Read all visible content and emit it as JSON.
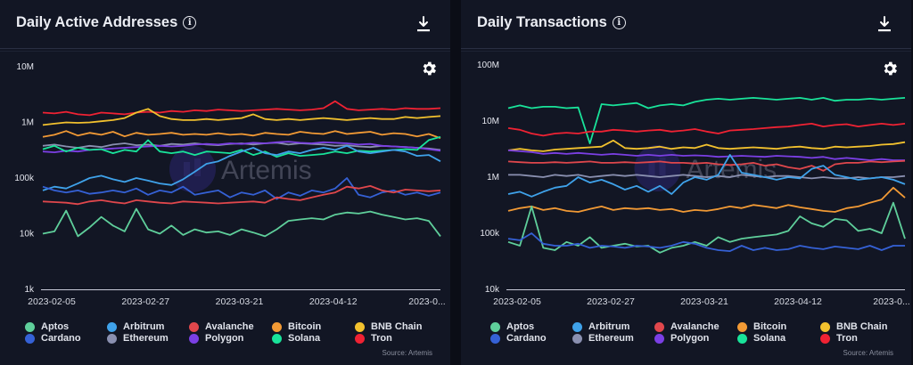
{
  "palette": {
    "Aptos": "#5fcf9b",
    "Arbitrum": "#3fa2ea",
    "Avalanche": "#e0474c",
    "Bitcoin": "#f29a35",
    "BNB Chain": "#f2c12e",
    "Cardano": "#3561d6",
    "Ethereum": "#8a90b0",
    "Polygon": "#7b3fe4",
    "Solana": "#19e39a",
    "Tron": "#ef2233"
  },
  "watermark": "Artemis",
  "panels": [
    {
      "title": "Daily Active Addresses",
      "source": "Source: Artemis",
      "legend": [
        "Aptos",
        "Arbitrum",
        "Avalanche",
        "Bitcoin",
        "BNB Chain",
        "Cardano",
        "Ethereum",
        "Polygon",
        "Solana",
        "Tron"
      ]
    },
    {
      "title": "Daily Transactions",
      "source": "Source: Artemis",
      "legend": [
        "Aptos",
        "Arbitrum",
        "Avalanche",
        "Bitcoin",
        "BNB Chain",
        "Cardano",
        "Ethereum",
        "Polygon",
        "Solana",
        "Tron"
      ]
    }
  ],
  "chart_data": [
    {
      "type": "line",
      "title": "Daily Active Addresses",
      "yscale": "log",
      "ylim": [
        1000,
        10000000
      ],
      "yticks": [
        1000,
        10000,
        100000,
        1000000,
        10000000
      ],
      "ytick_labels": [
        "1k",
        "10k",
        "100k",
        "1M",
        "10M"
      ],
      "xlim": [
        "2023-02-05",
        "2023-05-04"
      ],
      "xtick_labels": [
        "2023-02-05",
        "2023-02-27",
        "2023-03-21",
        "2023-04-12",
        "2023-0..."
      ],
      "series": [
        {
          "name": "Tron",
          "values": [
            1500000,
            1450000,
            1550000,
            1400000,
            1350000,
            1500000,
            1450000,
            1400000,
            1500000,
            1550000,
            1500000,
            1600000,
            1550000,
            1650000,
            1600000,
            1700000,
            1650000,
            1600000,
            1650000,
            1700000,
            1750000,
            1700000,
            1650000,
            1700000,
            1800000,
            2400000,
            1750000,
            1650000,
            1700000,
            1750000,
            1700000,
            1800000,
            1750000,
            1750000,
            1800000
          ]
        },
        {
          "name": "BNB Chain",
          "values": [
            900000,
            950000,
            1000000,
            980000,
            1000000,
            1050000,
            1100000,
            1200000,
            1500000,
            1750000,
            1300000,
            1150000,
            1100000,
            1100000,
            1150000,
            1100000,
            1150000,
            1200000,
            1400000,
            1150000,
            1100000,
            1150000,
            1100000,
            1150000,
            1200000,
            1150000,
            1100000,
            1150000,
            1200000,
            1150000,
            1150000,
            1250000,
            1200000,
            1250000,
            1300000
          ]
        },
        {
          "name": "Bitcoin",
          "values": [
            550000,
            600000,
            700000,
            580000,
            650000,
            600000,
            680000,
            560000,
            650000,
            600000,
            620000,
            650000,
            600000,
            620000,
            600000,
            640000,
            600000,
            620000,
            580000,
            650000,
            620000,
            600000,
            680000,
            640000,
            620000,
            700000,
            620000,
            650000,
            680000,
            600000,
            640000,
            620000,
            560000,
            620000,
            520000
          ]
        },
        {
          "name": "Ethereum",
          "values": [
            380000,
            400000,
            370000,
            350000,
            380000,
            360000,
            400000,
            420000,
            390000,
            400000,
            380000,
            410000,
            400000,
            420000,
            400000,
            390000,
            410000,
            420000,
            400000,
            420000,
            430000,
            400000,
            420000,
            410000,
            400000,
            380000,
            390000,
            370000,
            360000,
            380000,
            370000,
            360000,
            350000,
            340000,
            320000
          ]
        },
        {
          "name": "Polygon",
          "values": [
            300000,
            290000,
            310000,
            300000,
            320000,
            330000,
            340000,
            350000,
            360000,
            370000,
            380000,
            370000,
            380000,
            400000,
            410000,
            400000,
            420000,
            410000,
            430000,
            420000,
            440000,
            450000,
            430000,
            420000,
            440000,
            430000,
            420000,
            400000,
            410000,
            380000,
            370000,
            360000,
            350000,
            330000,
            310000
          ]
        },
        {
          "name": "Solana",
          "values": [
            330000,
            380000,
            300000,
            350000,
            320000,
            330000,
            280000,
            320000,
            300000,
            480000,
            300000,
            280000,
            300000,
            260000,
            300000,
            290000,
            280000,
            320000,
            260000,
            300000,
            240000,
            280000,
            250000,
            260000,
            270000,
            300000,
            280000,
            310000,
            300000,
            310000,
            320000,
            330000,
            320000,
            480000,
            550000
          ]
        },
        {
          "name": "Arbitrum",
          "values": [
            60000,
            70000,
            65000,
            80000,
            100000,
            110000,
            95000,
            85000,
            100000,
            90000,
            80000,
            75000,
            95000,
            130000,
            180000,
            200000,
            250000,
            300000,
            350000,
            280000,
            260000,
            300000,
            280000,
            320000,
            350000,
            320000,
            380000,
            300000,
            280000,
            300000,
            320000,
            300000,
            250000,
            260000,
            200000
          ]
        },
        {
          "name": "Cardano",
          "values": [
            70000,
            60000,
            55000,
            60000,
            52000,
            55000,
            60000,
            55000,
            65000,
            50000,
            60000,
            55000,
            70000,
            50000,
            55000,
            60000,
            45000,
            55000,
            50000,
            60000,
            42000,
            55000,
            48000,
            60000,
            55000,
            65000,
            100000,
            50000,
            45000,
            55000,
            60000,
            50000,
            55000,
            48000,
            55000
          ]
        },
        {
          "name": "Avalanche",
          "values": [
            38000,
            37000,
            36000,
            34000,
            38000,
            40000,
            37000,
            35000,
            40000,
            38000,
            36000,
            35000,
            38000,
            37000,
            36000,
            35000,
            36000,
            37000,
            38000,
            36000,
            45000,
            42000,
            40000,
            45000,
            50000,
            55000,
            70000,
            65000,
            72000,
            60000,
            55000,
            62000,
            60000,
            58000,
            60000
          ]
        },
        {
          "name": "Aptos",
          "values": [
            10000,
            11000,
            26000,
            9000,
            13000,
            20000,
            14000,
            11000,
            28000,
            12000,
            10000,
            14000,
            9500,
            12000,
            10500,
            11000,
            9500,
            12000,
            10500,
            9000,
            12000,
            17000,
            18000,
            19000,
            18000,
            22000,
            24000,
            23000,
            25000,
            22000,
            20000,
            18000,
            19000,
            17000,
            9000
          ]
        }
      ]
    },
    {
      "type": "line",
      "title": "Daily Transactions",
      "yscale": "log",
      "ylim": [
        10000,
        100000000
      ],
      "yticks": [
        10000,
        100000,
        1000000,
        10000000,
        100000000
      ],
      "ytick_labels": [
        "10k",
        "100k",
        "1M",
        "10M",
        "100M"
      ],
      "xlim": [
        "2023-02-05",
        "2023-05-04"
      ],
      "xtick_labels": [
        "2023-02-05",
        "2023-02-27",
        "2023-03-21",
        "2023-04-12",
        "2023-0..."
      ],
      "series": [
        {
          "name": "Solana",
          "values": [
            17000000,
            19000000,
            17000000,
            18000000,
            18000000,
            17000000,
            17500000,
            4000000,
            20000000,
            19000000,
            20000000,
            21000000,
            17000000,
            19000000,
            20000000,
            19000000,
            22000000,
            24000000,
            25000000,
            24000000,
            25000000,
            26000000,
            25000000,
            24000000,
            25000000,
            26000000,
            24000000,
            26000000,
            23000000,
            24000000,
            24000000,
            25000000,
            24000000,
            25000000,
            26000000
          ]
        },
        {
          "name": "Tron",
          "values": [
            7500000,
            7000000,
            6000000,
            5500000,
            6000000,
            6200000,
            6000000,
            6500000,
            6500000,
            7000000,
            6800000,
            6500000,
            6800000,
            7000000,
            6500000,
            6800000,
            7200000,
            6500000,
            6000000,
            6800000,
            7000000,
            7200000,
            7500000,
            7800000,
            8000000,
            8500000,
            9000000,
            8000000,
            8500000,
            8800000,
            8000000,
            8500000,
            9000000,
            8500000,
            9000000
          ]
        },
        {
          "name": "BNB Chain",
          "values": [
            3000000,
            3200000,
            3000000,
            2900000,
            3100000,
            3200000,
            3300000,
            3400000,
            3500000,
            4500000,
            3300000,
            3200000,
            3300000,
            3500000,
            3200000,
            3400000,
            3300000,
            3800000,
            3300000,
            3200000,
            3300000,
            3400000,
            3300000,
            3200000,
            3400000,
            3500000,
            3300000,
            3200000,
            3500000,
            3400000,
            3500000,
            3600000,
            3800000,
            3900000,
            4200000
          ]
        },
        {
          "name": "Polygon",
          "values": [
            3000000,
            2900000,
            2800000,
            2600000,
            2700000,
            2600000,
            2700000,
            2600000,
            2500000,
            2600000,
            2500000,
            2400000,
            2500000,
            2400000,
            2500000,
            2400000,
            2450000,
            2400000,
            2300000,
            2350000,
            2400000,
            2350000,
            2300000,
            2400000,
            2350000,
            2300000,
            2200000,
            2300000,
            2100000,
            2200000,
            2100000,
            2000000,
            2100000,
            2000000,
            2000000
          ]
        },
        {
          "name": "Avalanche",
          "values": [
            1900000,
            1850000,
            1800000,
            1800000,
            1850000,
            1800000,
            1850000,
            1900000,
            1800000,
            1800000,
            1850000,
            1800000,
            1850000,
            1900000,
            1800000,
            1800000,
            1750000,
            1800000,
            1700000,
            1650000,
            1700000,
            1800000,
            1600000,
            1700000,
            1500000,
            1400000,
            1600000,
            1300000,
            1700000,
            1800000,
            1800000,
            1900000,
            1850000,
            1900000,
            1950000
          ]
        },
        {
          "name": "Ethereum",
          "values": [
            1100000,
            1100000,
            1050000,
            1000000,
            1100000,
            1050000,
            1100000,
            1000000,
            1050000,
            1100000,
            1050000,
            1100000,
            1050000,
            1000000,
            1050000,
            1100000,
            1050000,
            1000000,
            1050000,
            1000000,
            1100000,
            1050000,
            1000000,
            1050000,
            1050000,
            1000000,
            950000,
            1000000,
            950000,
            950000,
            1000000,
            950000,
            1000000,
            1000000,
            1050000
          ]
        },
        {
          "name": "Arbitrum",
          "values": [
            500000,
            550000,
            450000,
            550000,
            650000,
            700000,
            1000000,
            800000,
            900000,
            750000,
            600000,
            700000,
            550000,
            700000,
            500000,
            800000,
            1000000,
            900000,
            1100000,
            2500000,
            1200000,
            1100000,
            1000000,
            900000,
            1000000,
            950000,
            1400000,
            1600000,
            1100000,
            1000000,
            900000,
            950000,
            1000000,
            900000,
            750000
          ]
        },
        {
          "name": "Bitcoin",
          "values": [
            250000,
            280000,
            300000,
            260000,
            280000,
            250000,
            240000,
            270000,
            300000,
            260000,
            280000,
            270000,
            280000,
            260000,
            270000,
            240000,
            260000,
            250000,
            270000,
            300000,
            280000,
            320000,
            300000,
            280000,
            320000,
            290000,
            270000,
            250000,
            240000,
            280000,
            300000,
            350000,
            400000,
            650000,
            430000
          ]
        },
        {
          "name": "Aptos",
          "values": [
            70000,
            60000,
            300000,
            55000,
            50000,
            70000,
            60000,
            85000,
            55000,
            60000,
            65000,
            58000,
            60000,
            45000,
            55000,
            60000,
            70000,
            60000,
            85000,
            70000,
            80000,
            85000,
            90000,
            95000,
            110000,
            200000,
            150000,
            130000,
            180000,
            170000,
            110000,
            120000,
            100000,
            350000,
            80000
          ]
        },
        {
          "name": "Cardano",
          "values": [
            80000,
            75000,
            100000,
            65000,
            60000,
            60000,
            65000,
            55000,
            60000,
            58000,
            55000,
            60000,
            58000,
            55000,
            60000,
            70000,
            65000,
            55000,
            50000,
            48000,
            60000,
            50000,
            55000,
            50000,
            52000,
            60000,
            55000,
            52000,
            58000,
            55000,
            52000,
            60000,
            50000,
            60000,
            60000
          ]
        }
      ]
    }
  ]
}
